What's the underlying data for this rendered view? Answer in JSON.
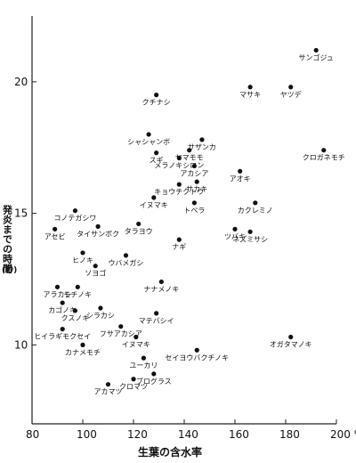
{
  "chart_data": {
    "type": "scatter",
    "xlabel": "生葉の含水率",
    "ylabel": "発炎までの時間",
    "yunit": "(秒)",
    "x_tick_labels": [
      "80",
      "100",
      "120",
      "140",
      "160",
      "180",
      "200 %"
    ],
    "y_tick_labels": [
      "10",
      "15",
      "20"
    ],
    "xlim": [
      80,
      200
    ],
    "ylim": [
      7,
      22.5
    ],
    "x_ticks": [
      80,
      100,
      120,
      140,
      160,
      180,
      200
    ],
    "y_ticks": [
      10,
      15,
      20
    ],
    "points": [
      {
        "label": "サンゴジュ",
        "x": 192,
        "y": 21.2
      },
      {
        "label": "マサキ",
        "x": 166,
        "y": 19.8
      },
      {
        "label": "ヤツデ",
        "x": 182,
        "y": 19.8
      },
      {
        "label": "クチナシ",
        "x": 129,
        "y": 19.5
      },
      {
        "label": "シャシャンボ",
        "x": 126,
        "y": 18.0
      },
      {
        "label": "サザンカ",
        "x": 147,
        "y": 17.8
      },
      {
        "label": "スギ",
        "x": 129,
        "y": 17.3
      },
      {
        "label": "ヤマモモ",
        "x": 142,
        "y": 17.4
      },
      {
        "label": "メラノキシロン",
        "x": 138,
        "y": 17.1
      },
      {
        "label": "アカシア",
        "x": 144,
        "y": 16.8
      },
      {
        "label": "クロガネモチ",
        "x": 195,
        "y": 17.4
      },
      {
        "label": "アオキ",
        "x": 162,
        "y": 16.6
      },
      {
        "label": "キョウチクトウ",
        "x": 138,
        "y": 16.1
      },
      {
        "label": "サカキ",
        "x": 145,
        "y": 16.2
      },
      {
        "label": "イヌマキ",
        "x": 128,
        "y": 15.6
      },
      {
        "label": "トベラ",
        "x": 144,
        "y": 15.4
      },
      {
        "label": "カクレミノ",
        "x": 168,
        "y": 15.4
      },
      {
        "label": "コノテガシワ",
        "x": 97,
        "y": 15.1
      },
      {
        "label": "タラヨウ",
        "x": 122,
        "y": 14.6
      },
      {
        "label": "アセビ",
        "x": 89,
        "y": 14.4
      },
      {
        "label": "タイサンボク",
        "x": 106,
        "y": 14.5
      },
      {
        "label": "ツバキ",
        "x": 160,
        "y": 14.4
      },
      {
        "label": "ネズミサシ",
        "x": 166,
        "y": 14.3
      },
      {
        "label": "ナギ",
        "x": 138,
        "y": 14.0
      },
      {
        "label": "ヒノキ",
        "x": 100,
        "y": 13.5
      },
      {
        "label": "ウバメガシ",
        "x": 117,
        "y": 13.4
      },
      {
        "label": "ソヨゴ",
        "x": 105,
        "y": 13.0
      },
      {
        "label": "アラカシ",
        "x": 90,
        "y": 12.2
      },
      {
        "label": "モチノキ",
        "x": 98,
        "y": 12.2
      },
      {
        "label": "ナナメノキ",
        "x": 131,
        "y": 12.4
      },
      {
        "label": "カゴノキ",
        "x": 92,
        "y": 11.6
      },
      {
        "label": "クスノキ",
        "x": 97,
        "y": 11.3
      },
      {
        "label": "シラカシ",
        "x": 107,
        "y": 11.4
      },
      {
        "label": "マテバシイ",
        "x": 129,
        "y": 11.2
      },
      {
        "label": "フサアカシア",
        "x": 115,
        "y": 10.7
      },
      {
        "label": "ヒイラギモクセイ",
        "x": 92,
        "y": 10.6
      },
      {
        "label": "カナメモチ",
        "x": 100,
        "y": 10.0
      },
      {
        "label": "イヌマキ",
        "x": 121,
        "y": 10.3
      },
      {
        "label": "オガタマノキ",
        "x": 182,
        "y": 10.3
      },
      {
        "label": "セイヨウバクチノキ",
        "x": 145,
        "y": 9.8
      },
      {
        "label": "ユーカリ",
        "x": 124,
        "y": 9.5
      },
      {
        "label": "ブログラス",
        "x": 128,
        "y": 8.9
      },
      {
        "label": "クロマツ",
        "x": 120,
        "y": 8.7
      },
      {
        "label": "アカマツ",
        "x": 110,
        "y": 8.5
      }
    ]
  }
}
